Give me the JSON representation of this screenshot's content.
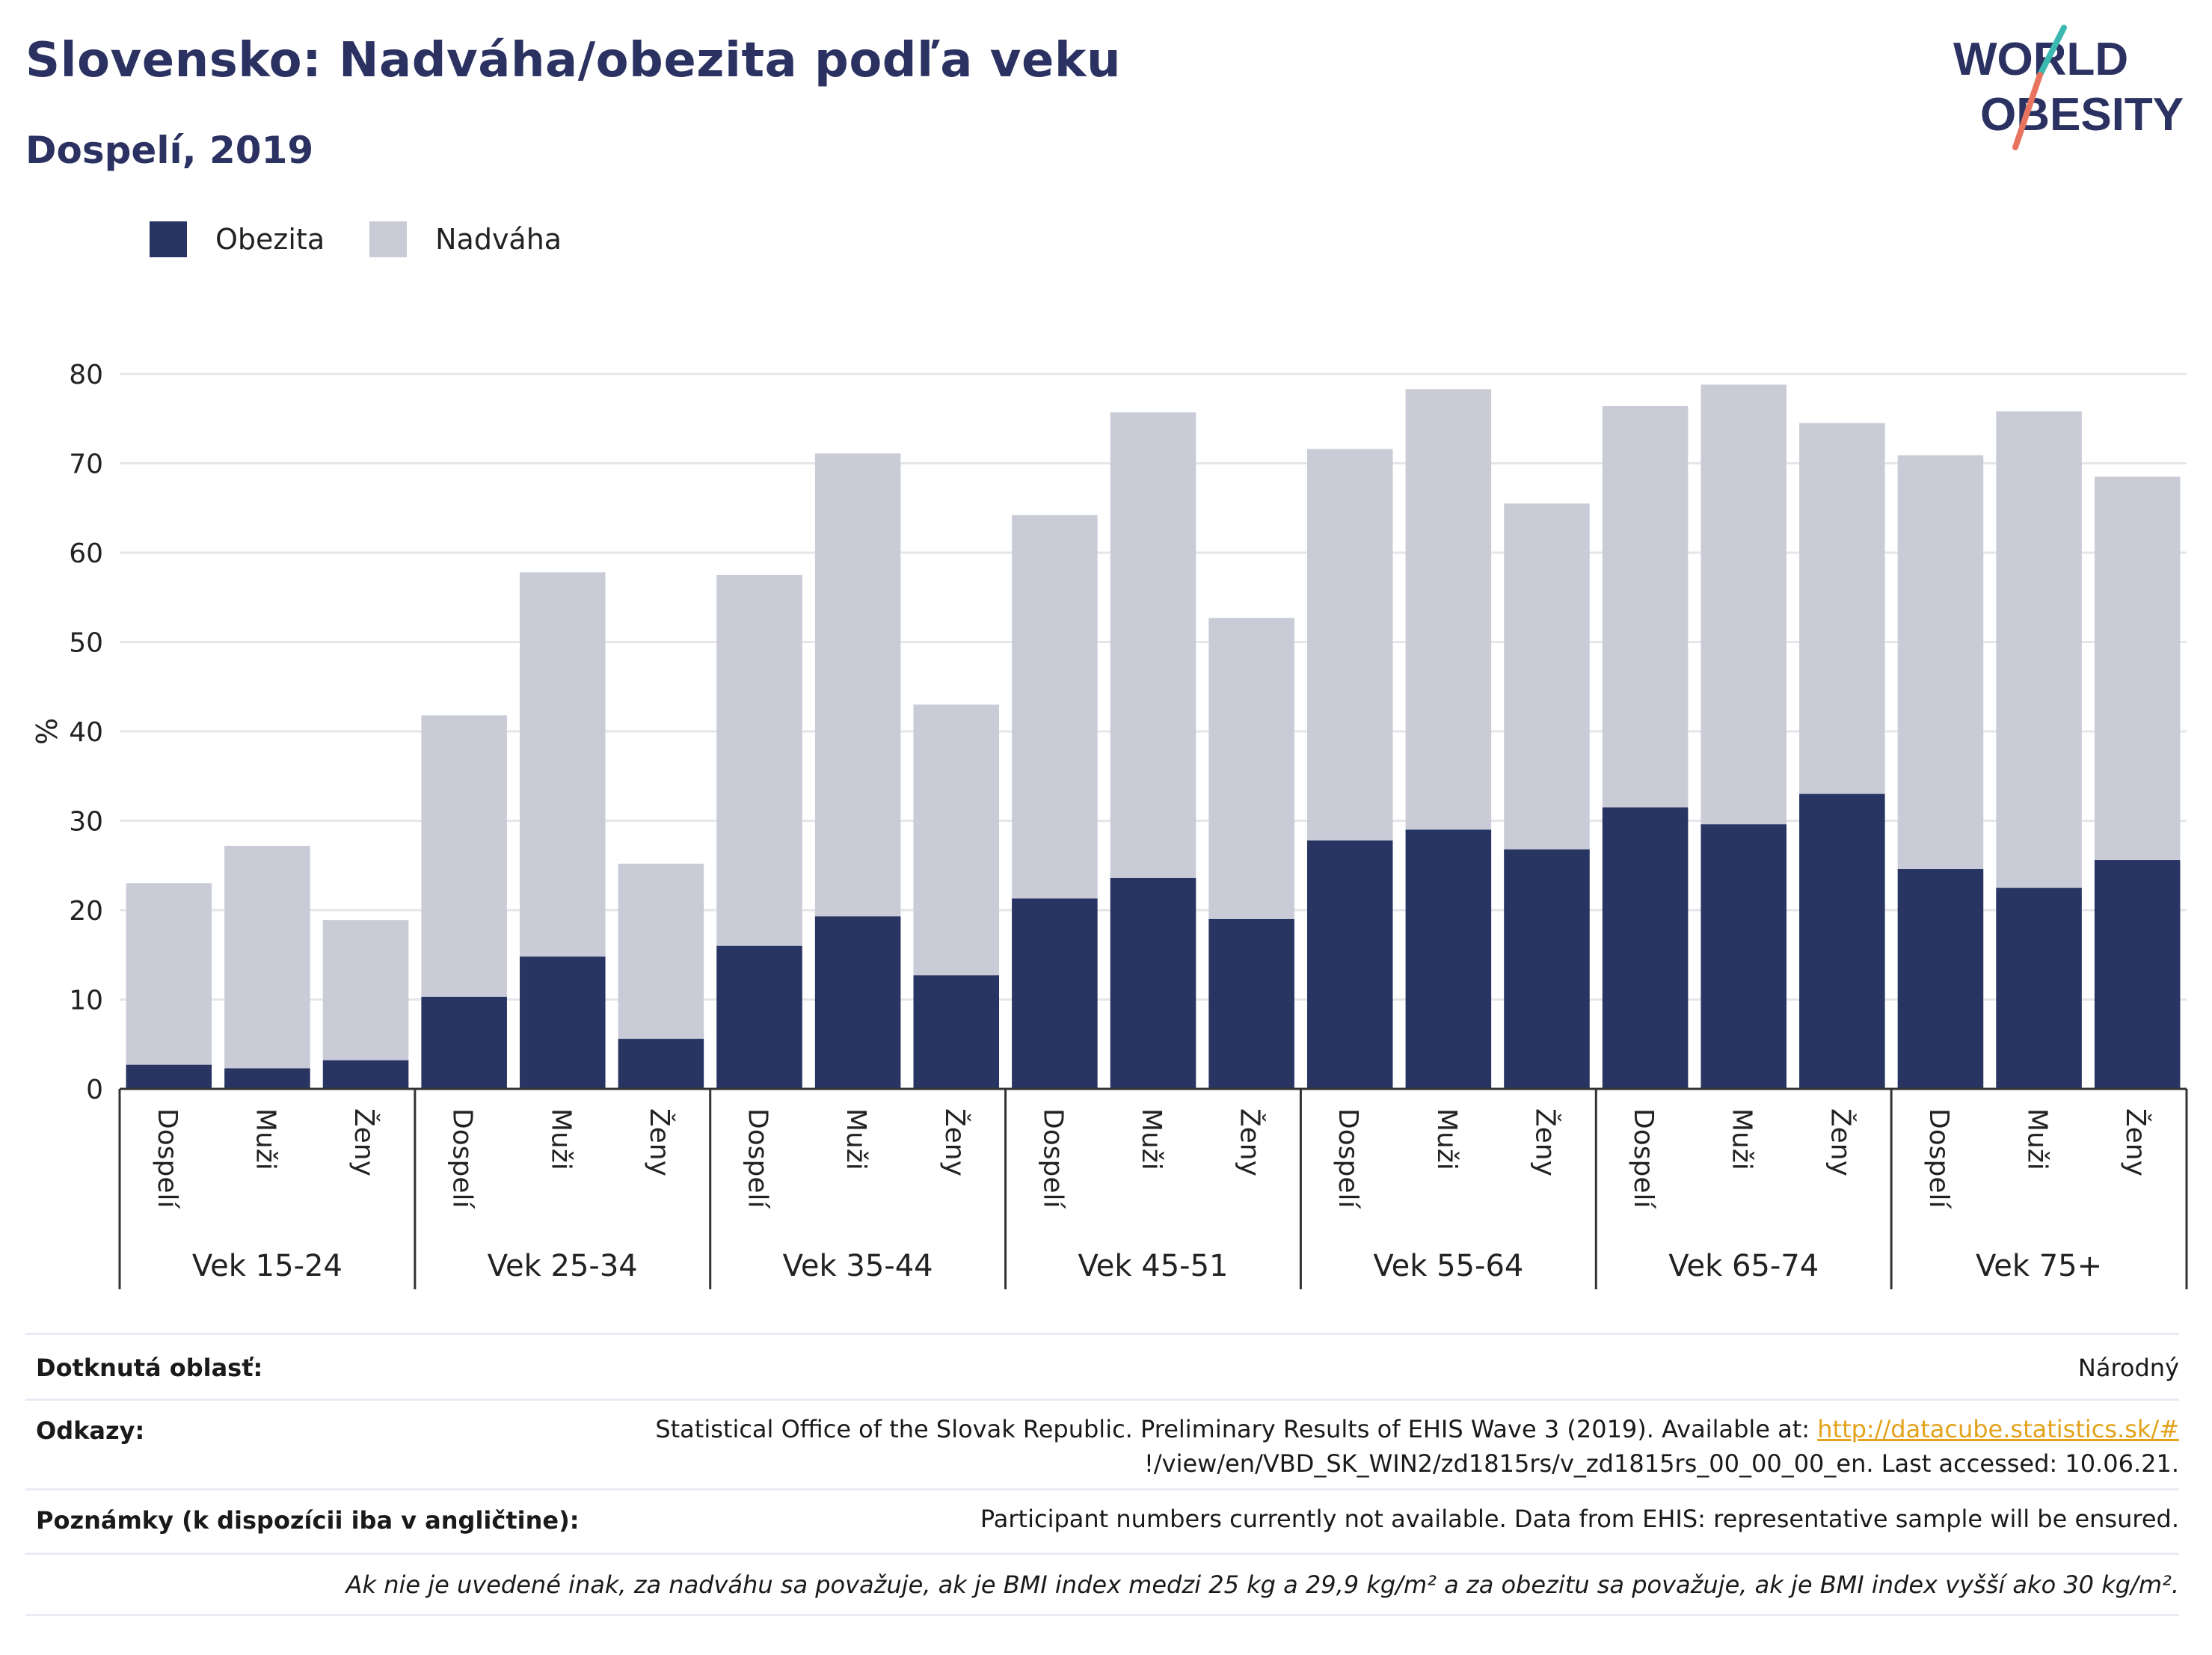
{
  "header": {
    "title": "Slovensko: Nadváha/obezita podľa veku",
    "subtitle": "Dospelí, 2019",
    "logo_line1": "WORLD",
    "logo_line2": "OBESITY"
  },
  "legend": [
    {
      "label": "Obezita",
      "color": "#283462"
    },
    {
      "label": "Nadváha",
      "color": "#c9cbd7"
    }
  ],
  "chart_data": {
    "type": "bar",
    "stacked": false,
    "overlay": true,
    "ylabel": "%",
    "ylim": [
      0,
      80
    ],
    "yticks": [
      0,
      10,
      20,
      30,
      40,
      50,
      60,
      70,
      80
    ],
    "grid": true,
    "legend_position": "top-left",
    "groups": [
      {
        "label": "Vek 15-24",
        "categories": [
          "Dospelí",
          "Muži",
          "Ženy"
        ]
      },
      {
        "label": "Vek 25-34",
        "categories": [
          "Dospelí",
          "Muži",
          "Ženy"
        ]
      },
      {
        "label": "Vek 35-44",
        "categories": [
          "Dospelí",
          "Muži",
          "Ženy"
        ]
      },
      {
        "label": "Vek 45-51",
        "categories": [
          "Dospelí",
          "Muži",
          "Ženy"
        ]
      },
      {
        "label": "Vek 55-64",
        "categories": [
          "Dospelí",
          "Muži",
          "Ženy"
        ]
      },
      {
        "label": "Vek 65-74",
        "categories": [
          "Dospelí",
          "Muži",
          "Ženy"
        ]
      },
      {
        "label": "Vek 75+",
        "categories": [
          "Dospelí",
          "Muži",
          "Ženy"
        ]
      }
    ],
    "series": [
      {
        "name": "Nadváha",
        "color": "#c9cbd7",
        "values": [
          23.0,
          27.2,
          18.9,
          41.8,
          57.8,
          25.2,
          57.5,
          71.1,
          43.0,
          64.2,
          75.7,
          52.7,
          71.6,
          78.3,
          65.5,
          76.4,
          78.8,
          74.5,
          70.9,
          75.8,
          68.5
        ]
      },
      {
        "name": "Obezita",
        "color": "#283462",
        "values": [
          2.7,
          2.3,
          3.2,
          10.3,
          14.8,
          5.6,
          16.0,
          19.3,
          12.7,
          21.3,
          23.6,
          19.0,
          27.8,
          29.0,
          26.8,
          31.5,
          29.6,
          33.0,
          24.6,
          22.5,
          25.6
        ]
      }
    ]
  },
  "footer": {
    "area_label": "Dotknutá oblasť:",
    "area_value": "Národný",
    "refs_label": "Odkazy:",
    "refs_text_1": "Statistical Office of the Slovak Republic. Preliminary Results of EHIS Wave 3 (2019). Available at: ",
    "refs_link": "http://datacube.statistics.sk/#",
    "refs_text_2": "!/view/en/VBD_SK_WIN2/zd1815rs/v_zd1815rs_00_00_00_en. Last accessed: 10.06.21.",
    "notes_label": "Poznámky (k dispozícii iba v angličtine):",
    "notes_value": "Participant numbers currently not available. Data from EHIS: representative sample will be ensured.",
    "bmi_note": "Ak nie je uvedené inak, za nadváhu sa považuje, ak je BMI index medzi 25 kg a 29,9 kg/m² a za obezitu sa považuje, ak je BMI index vyšší ako 30 kg/m²."
  }
}
